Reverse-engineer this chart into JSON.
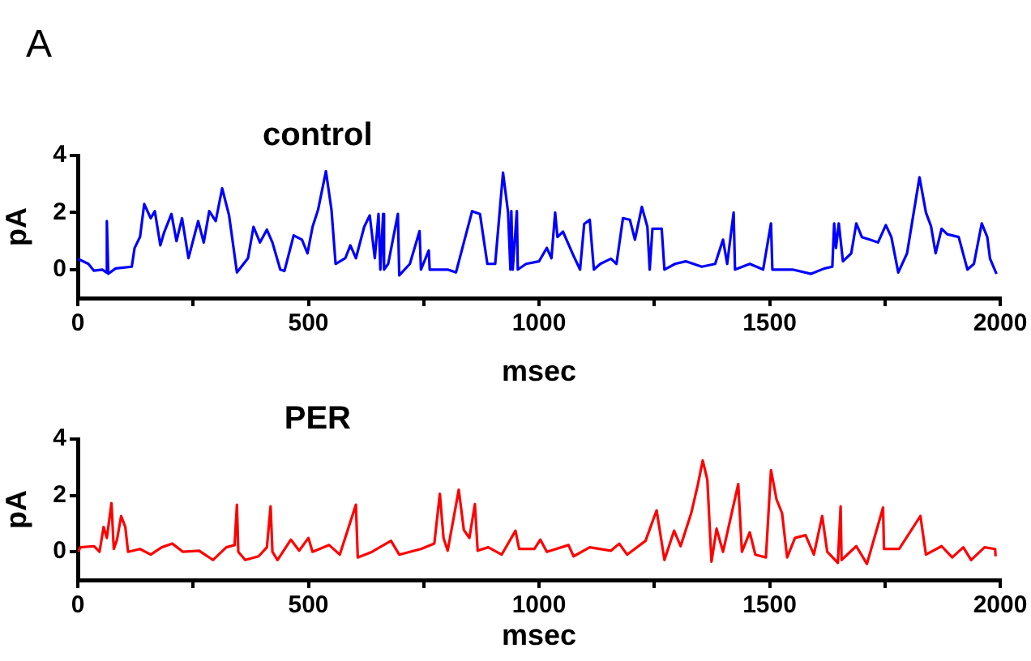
{
  "chart_data": [
    {
      "type": "line",
      "title": "control",
      "xlabel": "msec",
      "ylabel": "pA",
      "annotations": [
        "A"
      ],
      "xlim": [
        0,
        2000
      ],
      "ylim": [
        -1,
        4
      ],
      "xticks": [
        0,
        {
          "value": 250,
          "label": null
        },
        500,
        {
          "value": 750,
          "label": null
        },
        1000,
        {
          "value": 1250,
          "label": null
        },
        1500,
        {
          "value": 1750,
          "label": null
        },
        2000
      ],
      "yticks": [
        0,
        2,
        4
      ],
      "x": [
        0,
        23,
        35,
        53,
        62,
        63,
        66,
        82,
        117,
        123,
        135,
        144,
        158,
        167,
        179,
        187,
        203,
        214,
        226,
        240,
        261,
        273,
        285,
        299,
        313,
        328,
        345,
        369,
        381,
        395,
        410,
        422,
        439,
        448,
        468,
        486,
        498,
        509,
        521,
        538,
        550,
        559,
        580,
        591,
        603,
        621,
        633,
        644,
        652,
        656,
        662,
        664,
        673,
        694,
        697,
        720,
        741,
        744,
        761,
        763,
        802,
        820,
        837,
        855,
        872,
        888,
        905,
        922,
        933,
        938,
        940,
        943,
        952,
        954,
        972,
        1000,
        1017,
        1027,
        1035,
        1040,
        1052,
        1075,
        1089,
        1098,
        1110,
        1119,
        1133,
        1156,
        1168,
        1182,
        1197,
        1208,
        1223,
        1235,
        1240,
        1246,
        1266,
        1272,
        1295,
        1318,
        1353,
        1382,
        1399,
        1408,
        1422,
        1425,
        1457,
        1486,
        1503,
        1506,
        1550,
        1590,
        1619,
        1636,
        1640,
        1644,
        1650,
        1659,
        1677,
        1688,
        1700,
        1717,
        1735,
        1752,
        1764,
        1779,
        1798,
        1825,
        1839,
        1850,
        1860,
        1873,
        1885,
        1910,
        1929,
        1943,
        1960,
        1972,
        1978,
        1992
      ],
      "series": [
        {
          "color": "#0000ff",
          "values": [
            0.38,
            0.2,
            -0.04,
            0,
            -0.1,
            1.7,
            -0.15,
            0.04,
            0.1,
            0.75,
            1.15,
            2.3,
            1.8,
            2.05,
            0.85,
            1.3,
            1.95,
            1.0,
            1.8,
            0.4,
            1.7,
            0.95,
            2.05,
            1.7,
            2.85,
            1.9,
            -0.1,
            0.4,
            1.5,
            0.95,
            1.4,
            0.95,
            0,
            -0.05,
            1.2,
            1.05,
            0.57,
            1.5,
            2.1,
            3.45,
            2.1,
            0.2,
            0.4,
            0.85,
            0.4,
            1.5,
            1.9,
            0.4,
            1.95,
            0,
            1.95,
            0,
            0.2,
            1.95,
            -0.2,
            0.2,
            1.35,
            0,
            0.67,
            0,
            0,
            -0.1,
            0.95,
            2.05,
            1.95,
            0.2,
            0.2,
            3.4,
            2.0,
            0,
            2.05,
            0,
            2.05,
            0,
            0.2,
            0.29,
            0.76,
            0.4,
            2.0,
            1.14,
            1.33,
            0.48,
            0,
            1.6,
            1.75,
            0,
            0.2,
            0.38,
            0.2,
            1.8,
            1.75,
            1.05,
            2.2,
            1.5,
            0,
            1.43,
            1.43,
            0,
            0.2,
            0.29,
            0.1,
            0.2,
            1.05,
            0.2,
            2.0,
            0,
            0.2,
            0,
            1.62,
            0,
            0,
            -0.15,
            0.04,
            0.1,
            1.62,
            0.76,
            1.62,
            0.29,
            0.57,
            1.62,
            1.14,
            1.05,
            0.95,
            1.56,
            1.14,
            -0.1,
            0.57,
            3.24,
            2.0,
            1.52,
            0.57,
            1.43,
            1.24,
            1.14,
            0,
            0.2,
            1.62,
            1.14,
            0.38,
            -0.15
          ]
        }
      ]
    },
    {
      "type": "line",
      "title": "PER",
      "xlabel": "msec",
      "ylabel": "pA",
      "xlim": [
        0,
        2000
      ],
      "ylim": [
        -1,
        4
      ],
      "xticks": [
        0,
        {
          "value": 250,
          "label": null
        },
        500,
        {
          "value": 750,
          "label": null
        },
        1000,
        {
          "value": 1250,
          "label": null
        },
        1500,
        {
          "value": 1750,
          "label": null
        },
        2000
      ],
      "yticks": [
        0,
        2,
        4
      ],
      "x": [
        0,
        6,
        35,
        47,
        56,
        63,
        73,
        78,
        85,
        94,
        103,
        109,
        135,
        158,
        182,
        205,
        228,
        263,
        293,
        322,
        340,
        345,
        348,
        363,
        392,
        410,
        418,
        422,
        433,
        462,
        480,
        500,
        509,
        545,
        568,
        603,
        607,
        638,
        679,
        697,
        744,
        773,
        785,
        793,
        802,
        826,
        837,
        849,
        861,
        867,
        890,
        919,
        949,
        957,
        990,
        1003,
        1017,
        1064,
        1075,
        1110,
        1156,
        1174,
        1191,
        1231,
        1255,
        1272,
        1293,
        1307,
        1330,
        1344,
        1355,
        1365,
        1374,
        1385,
        1399,
        1432,
        1440,
        1457,
        1469,
        1492,
        1503,
        1515,
        1527,
        1538,
        1555,
        1578,
        1596,
        1614,
        1625,
        1648,
        1654,
        1656,
        1688,
        1711,
        1746,
        1748,
        1781,
        1827,
        1839,
        1873,
        1896,
        1920,
        1937,
        1966,
        1989,
        1990
      ],
      "series": [
        {
          "color": "#ff0000",
          "values": [
            0,
            0.16,
            0.2,
            0,
            0.88,
            0.49,
            1.73,
            0.1,
            0.43,
            1.27,
            0.88,
            0,
            0.1,
            -0.1,
            0.16,
            0.29,
            0,
            0.04,
            -0.29,
            0.16,
            0.24,
            1.67,
            0,
            -0.29,
            -0.16,
            0.16,
            1.61,
            0,
            -0.29,
            0.43,
            0.04,
            0.49,
            0,
            0.24,
            -0.1,
            1.67,
            -0.2,
            0,
            0.39,
            -0.1,
            0.1,
            0.29,
            2.06,
            0.49,
            0.04,
            2.2,
            0.78,
            0.49,
            1.69,
            0.04,
            0.16,
            -0.1,
            0.75,
            0.1,
            0.1,
            0.43,
            0,
            0.24,
            -0.16,
            0.16,
            0.04,
            0.29,
            -0.1,
            0.39,
            1.47,
            -0.29,
            0.75,
            0.2,
            1.37,
            2.35,
            3.24,
            2.55,
            -0.35,
            0.82,
            0,
            2.4,
            0,
            0.69,
            -0.1,
            -0.2,
            2.9,
            1.86,
            1.37,
            -0.2,
            0.49,
            0.59,
            -0.1,
            1.27,
            0,
            -0.39,
            1.61,
            -0.29,
            0.2,
            -0.43,
            1.57,
            0.1,
            0.1,
            1.27,
            -0.1,
            0.2,
            -0.2,
            0.16,
            -0.29,
            0.16,
            0.1,
            -0.16
          ]
        }
      ]
    }
  ]
}
